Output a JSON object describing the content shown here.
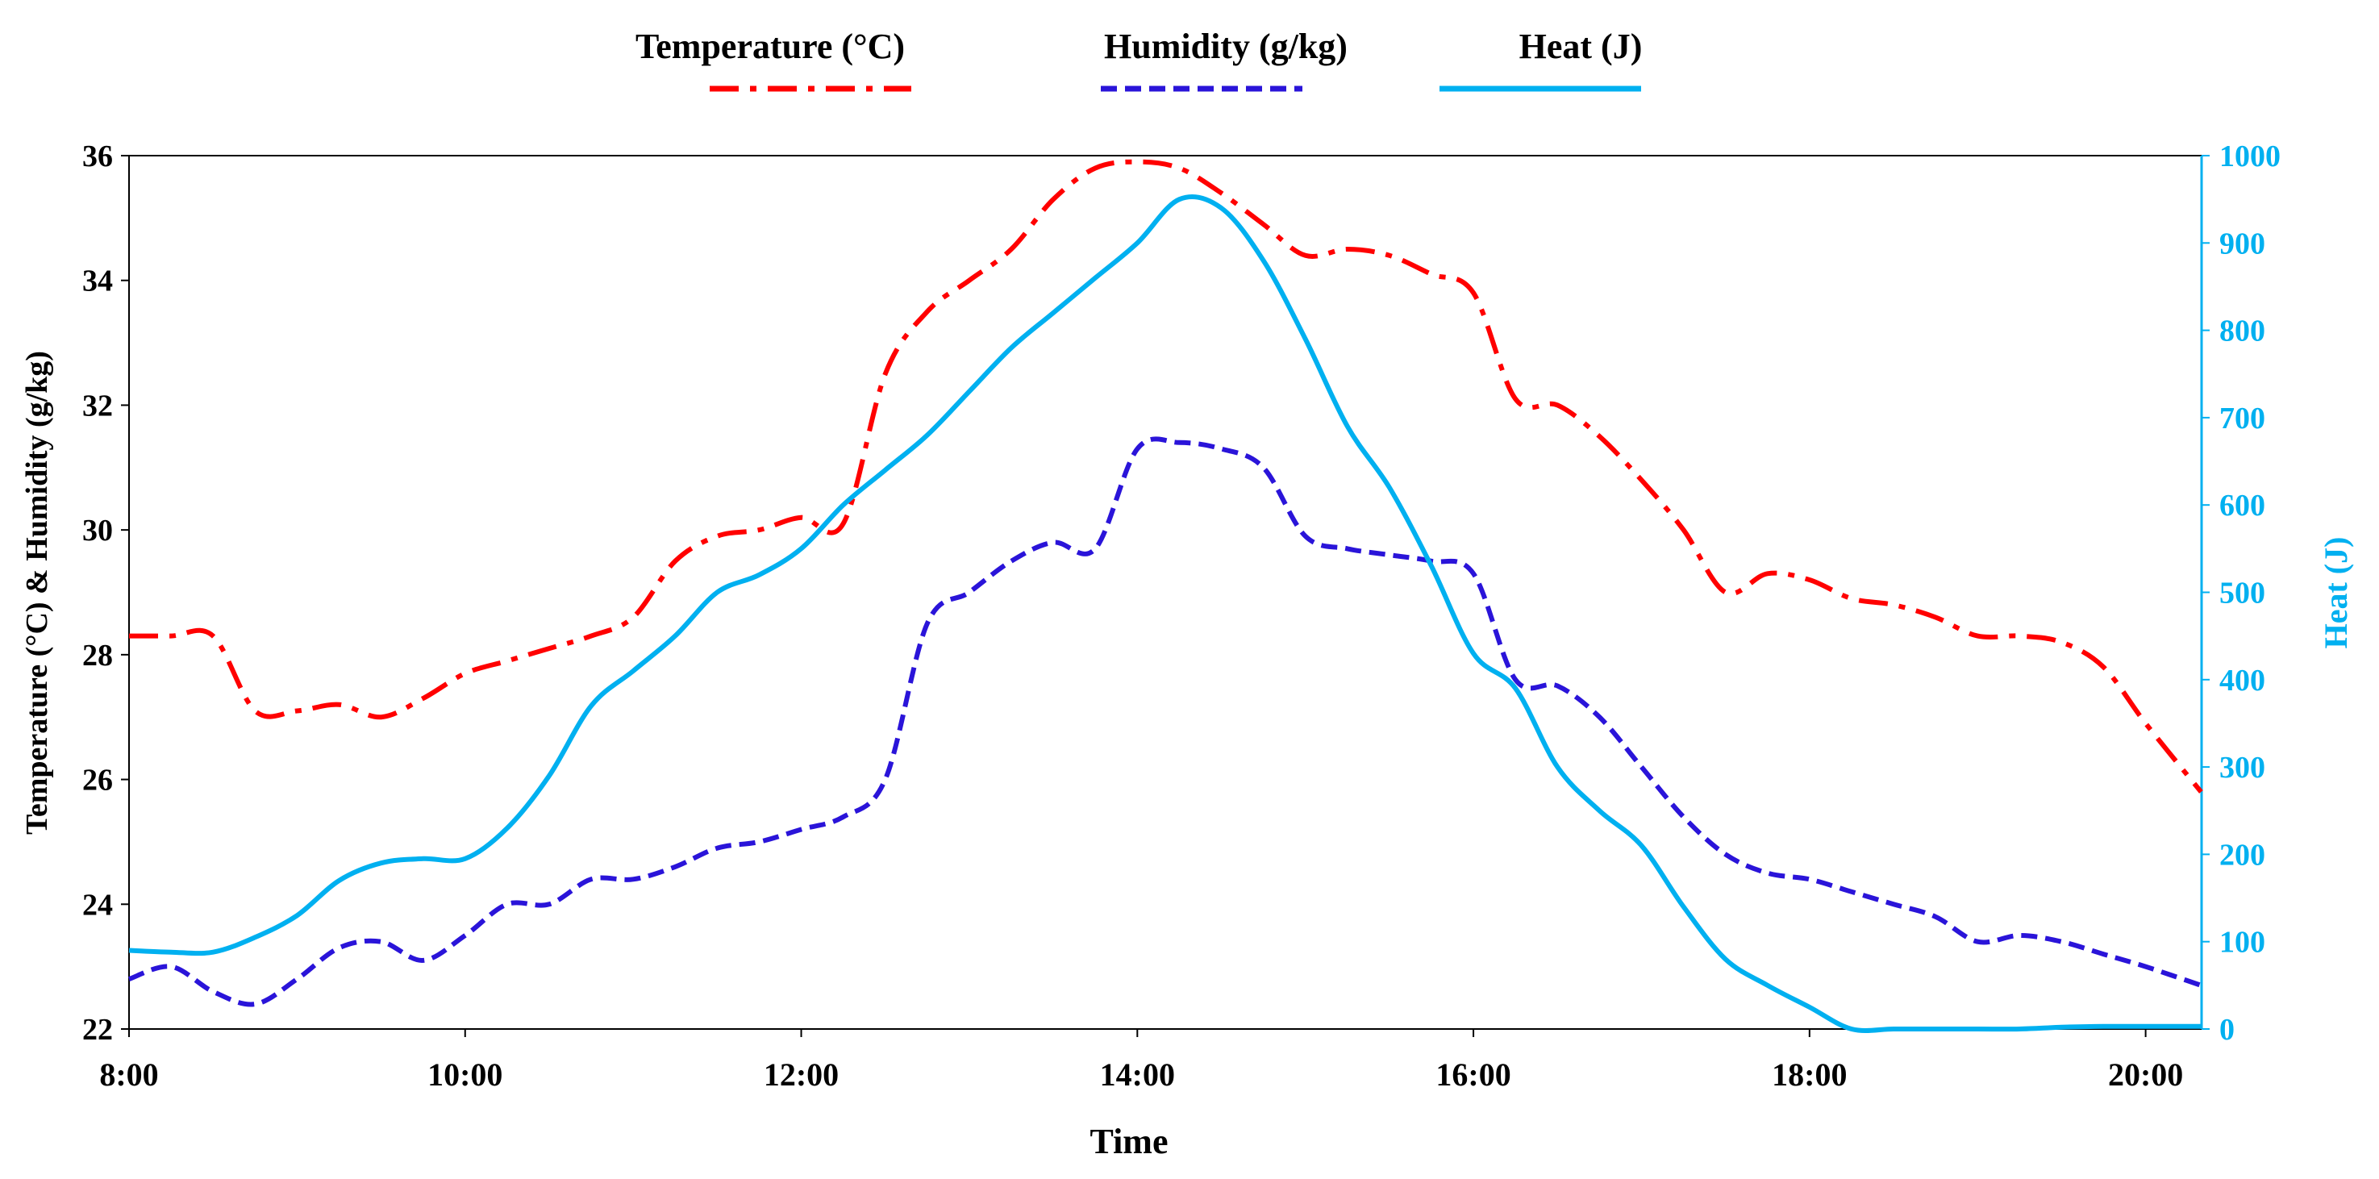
{
  "colors": {
    "temperature": "#ff0000",
    "humidity": "#2a14d9",
    "heat": "#00b0f0",
    "axis": "#000000",
    "heat_axis": "#00b0f0"
  },
  "legend": {
    "temperature": "Temperature (°C)",
    "humidity": "Humidity (g/kg)",
    "heat": "Heat (J)"
  },
  "chart_data": {
    "type": "line",
    "title": "",
    "xlabel": "Time",
    "ylabel_left": "Temperature (°C) & Humidity (g/kg)",
    "ylabel_right": "Heat (J)",
    "xlim": [
      8.0,
      20.333
    ],
    "ylim_left": [
      22,
      36
    ],
    "ylim_right": [
      0,
      1000
    ],
    "x_ticks": [
      8,
      10,
      12,
      14,
      16,
      18,
      20
    ],
    "x_tick_labels": [
      "8:00",
      "10:00",
      "12:00",
      "14:00",
      "16:00",
      "18:00",
      "20:00"
    ],
    "y_left_ticks": [
      22,
      24,
      26,
      28,
      30,
      32,
      34,
      36
    ],
    "y_left_tick_labels": [
      "22",
      "24",
      "26",
      "28",
      "30",
      "32",
      "34",
      "36"
    ],
    "y_right_ticks": [
      0,
      100,
      200,
      300,
      400,
      500,
      600,
      700,
      800,
      900,
      1000
    ],
    "y_right_tick_labels": [
      "0",
      "100",
      "200",
      "300",
      "400",
      "500",
      "600",
      "700",
      "800",
      "900",
      "1000"
    ],
    "series": [
      {
        "name": "Temperature (°C)",
        "axis": "left",
        "style": "dash-dot",
        "x": [
          8.0,
          8.25,
          8.5,
          8.75,
          9.0,
          9.25,
          9.5,
          9.75,
          10.0,
          10.25,
          10.5,
          10.75,
          11.0,
          11.25,
          11.5,
          11.75,
          12.0,
          12.25,
          12.5,
          12.75,
          13.0,
          13.25,
          13.5,
          13.75,
          14.0,
          14.25,
          14.5,
          14.75,
          15.0,
          15.25,
          15.5,
          15.75,
          16.0,
          16.25,
          16.5,
          16.75,
          17.0,
          17.25,
          17.5,
          17.75,
          18.0,
          18.25,
          18.5,
          18.75,
          19.0,
          19.25,
          19.5,
          19.75,
          20.0,
          20.33
        ],
        "values": [
          28.3,
          28.3,
          28.3,
          27.1,
          27.1,
          27.2,
          27.0,
          27.3,
          27.7,
          27.9,
          28.1,
          28.3,
          28.6,
          29.5,
          29.9,
          30.0,
          30.2,
          30.1,
          32.5,
          33.5,
          34.0,
          34.5,
          35.3,
          35.8,
          35.9,
          35.8,
          35.4,
          34.9,
          34.4,
          34.5,
          34.4,
          34.1,
          33.8,
          32.1,
          32.0,
          31.5,
          30.8,
          30.0,
          29.0,
          29.3,
          29.2,
          28.9,
          28.8,
          28.6,
          28.3,
          28.3,
          28.2,
          27.8,
          26.9,
          25.8
        ]
      },
      {
        "name": "Humidity (g/kg)",
        "axis": "left",
        "style": "dashed",
        "x": [
          8.0,
          8.25,
          8.5,
          8.75,
          9.0,
          9.25,
          9.5,
          9.75,
          10.0,
          10.25,
          10.5,
          10.75,
          11.0,
          11.25,
          11.5,
          11.75,
          12.0,
          12.25,
          12.5,
          12.75,
          13.0,
          13.25,
          13.5,
          13.75,
          14.0,
          14.25,
          14.5,
          14.75,
          15.0,
          15.25,
          15.5,
          15.75,
          16.0,
          16.25,
          16.5,
          16.75,
          17.0,
          17.25,
          17.5,
          17.75,
          18.0,
          18.25,
          18.5,
          18.75,
          19.0,
          19.25,
          19.5,
          19.75,
          20.0,
          20.33
        ],
        "values": [
          22.8,
          23.0,
          22.6,
          22.4,
          22.8,
          23.3,
          23.4,
          23.1,
          23.5,
          24.0,
          24.0,
          24.4,
          24.4,
          24.6,
          24.9,
          25.0,
          25.2,
          25.4,
          26.0,
          28.5,
          29.0,
          29.5,
          29.8,
          29.7,
          31.3,
          31.4,
          31.3,
          31.0,
          29.9,
          29.7,
          29.6,
          29.5,
          29.3,
          27.6,
          27.5,
          27.0,
          26.2,
          25.4,
          24.8,
          24.5,
          24.4,
          24.2,
          24.0,
          23.8,
          23.4,
          23.5,
          23.4,
          23.2,
          23.0,
          22.7
        ]
      },
      {
        "name": "Heat (J)",
        "axis": "right",
        "style": "solid",
        "x": [
          8.0,
          8.25,
          8.5,
          8.75,
          9.0,
          9.25,
          9.5,
          9.75,
          10.0,
          10.25,
          10.5,
          10.75,
          11.0,
          11.25,
          11.5,
          11.75,
          12.0,
          12.25,
          12.5,
          12.75,
          13.0,
          13.25,
          13.5,
          13.75,
          14.0,
          14.25,
          14.5,
          14.75,
          15.0,
          15.25,
          15.5,
          15.75,
          16.0,
          16.25,
          16.5,
          16.75,
          17.0,
          17.25,
          17.5,
          17.75,
          18.0,
          18.25,
          18.5,
          18.75,
          19.0,
          19.25,
          19.5,
          19.75,
          20.0,
          20.33
        ],
        "values": [
          90,
          88,
          88,
          105,
          130,
          170,
          190,
          195,
          195,
          230,
          290,
          370,
          410,
          450,
          500,
          520,
          550,
          600,
          640,
          680,
          730,
          780,
          820,
          860,
          900,
          950,
          940,
          880,
          790,
          690,
          620,
          530,
          430,
          390,
          300,
          250,
          210,
          140,
          80,
          50,
          25,
          0,
          0,
          0,
          0,
          0,
          2,
          3,
          3,
          3
        ]
      }
    ]
  }
}
